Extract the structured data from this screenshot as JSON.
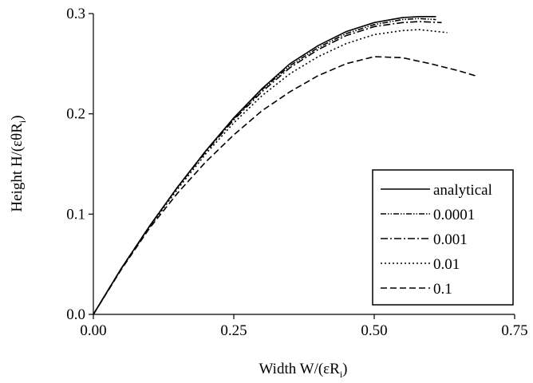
{
  "chart_data": {
    "type": "line",
    "xlabel": "Width  W/(εR",
    "xlabel_sub": "i",
    "xlabel_end": ")",
    "ylabel": "Height  H/(εθR",
    "ylabel_sub": "i",
    "ylabel_end": ")",
    "xlim": [
      0,
      0.75
    ],
    "ylim": [
      0,
      0.3
    ],
    "xticks": [
      0,
      0.25,
      0.5,
      0.75
    ],
    "xtick_labels": [
      "0.00",
      "0.25",
      "0.50",
      "0.75"
    ],
    "yticks": [
      0,
      0.1,
      0.2,
      0.3
    ],
    "ytick_labels": [
      "0.0",
      "0.1",
      "0.2",
      "0.3"
    ],
    "legend_position": "lower-right",
    "series": [
      {
        "name": "analytical",
        "dash": "solid",
        "x": [
          0,
          0.05,
          0.1,
          0.15,
          0.2,
          0.25,
          0.3,
          0.35,
          0.4,
          0.45,
          0.5,
          0.55,
          0.58,
          0.61
        ],
        "y": [
          0,
          0.046,
          0.088,
          0.127,
          0.163,
          0.196,
          0.225,
          0.25,
          0.268,
          0.282,
          0.291,
          0.296,
          0.297,
          0.297
        ]
      },
      {
        "name": "0.0001",
        "dash": "dash-dot-dot",
        "x": [
          0,
          0.05,
          0.1,
          0.15,
          0.2,
          0.25,
          0.3,
          0.35,
          0.4,
          0.45,
          0.5,
          0.55,
          0.58,
          0.61
        ],
        "y": [
          0,
          0.046,
          0.088,
          0.127,
          0.163,
          0.195,
          0.224,
          0.248,
          0.266,
          0.28,
          0.289,
          0.294,
          0.295,
          0.294
        ]
      },
      {
        "name": "0.001",
        "dash": "dash-dot",
        "x": [
          0,
          0.05,
          0.1,
          0.15,
          0.2,
          0.25,
          0.3,
          0.35,
          0.4,
          0.45,
          0.5,
          0.55,
          0.58,
          0.62
        ],
        "y": [
          0,
          0.046,
          0.088,
          0.127,
          0.162,
          0.194,
          0.222,
          0.246,
          0.264,
          0.278,
          0.287,
          0.291,
          0.292,
          0.291
        ]
      },
      {
        "name": "0.01",
        "dash": "dotted",
        "x": [
          0,
          0.05,
          0.1,
          0.15,
          0.2,
          0.25,
          0.3,
          0.35,
          0.4,
          0.45,
          0.5,
          0.55,
          0.58,
          0.63
        ],
        "y": [
          0,
          0.046,
          0.087,
          0.125,
          0.16,
          0.191,
          0.218,
          0.24,
          0.257,
          0.27,
          0.279,
          0.283,
          0.284,
          0.281
        ]
      },
      {
        "name": "0.1",
        "dash": "dashed",
        "x": [
          0,
          0.05,
          0.1,
          0.15,
          0.2,
          0.25,
          0.3,
          0.35,
          0.4,
          0.45,
          0.5,
          0.55,
          0.6,
          0.65,
          0.68
        ],
        "y": [
          0,
          0.045,
          0.086,
          0.121,
          0.152,
          0.179,
          0.203,
          0.222,
          0.238,
          0.25,
          0.257,
          0.256,
          0.25,
          0.243,
          0.238
        ]
      }
    ]
  }
}
